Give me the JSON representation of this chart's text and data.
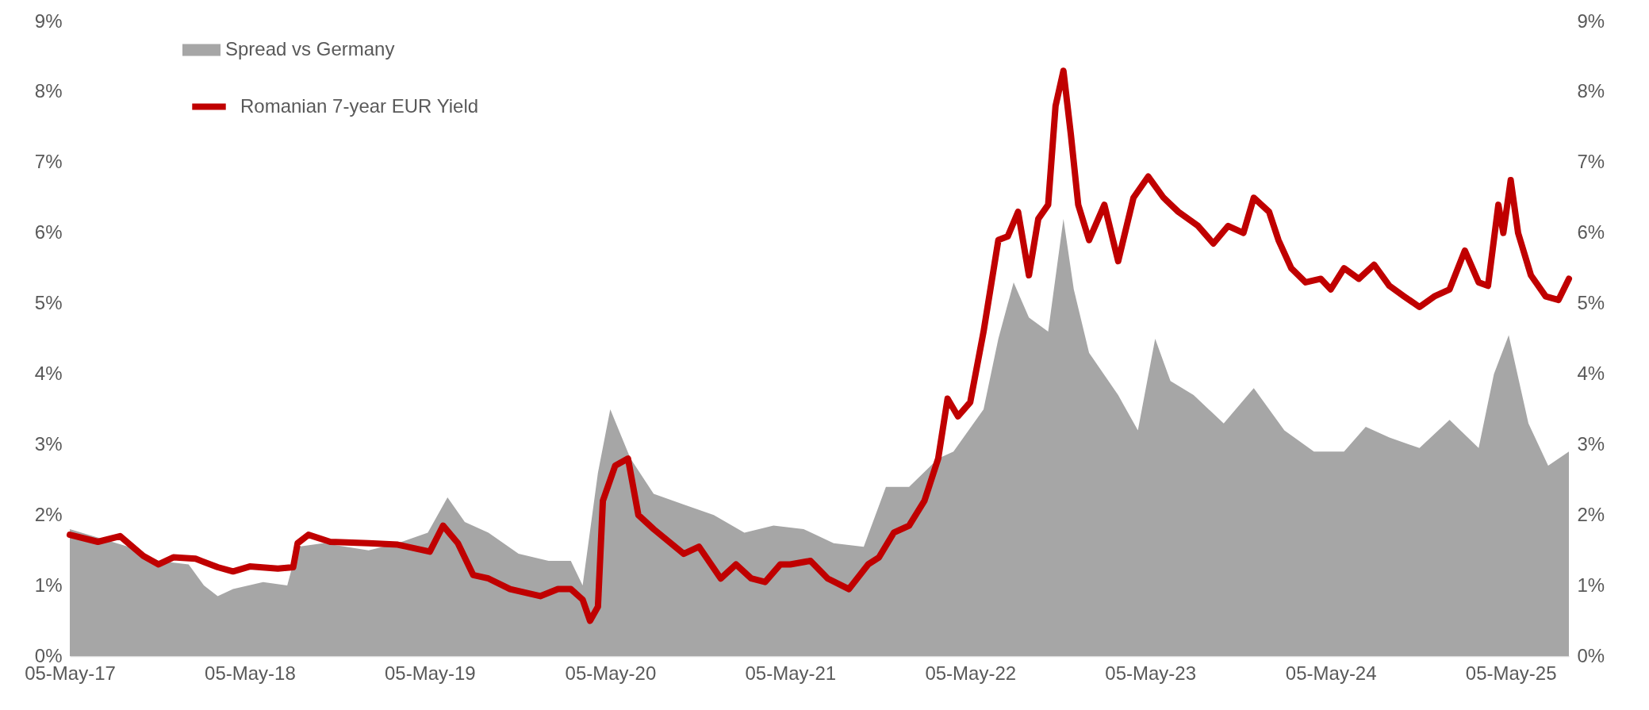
{
  "chart_data": {
    "type": "area",
    "legend": "top left",
    "grid": false,
    "line_style": "solid",
    "xticks": [
      {
        "value": "2017-05-05",
        "label": "05-May-17"
      },
      {
        "value": "2018-05-05",
        "label": "05-May-18"
      },
      {
        "value": "2019-05-05",
        "label": "05-May-19"
      },
      {
        "value": "2020-05-05",
        "label": "05-May-20"
      },
      {
        "value": "2021-05-05",
        "label": "05-May-21"
      },
      {
        "value": "2022-05-05",
        "label": "05-May-22"
      },
      {
        "value": "2023-05-05",
        "label": "05-May-23"
      },
      {
        "value": "2024-05-05",
        "label": "05-May-24"
      },
      {
        "value": "2025-05-05",
        "label": "05-May-25"
      }
    ],
    "xlim": [
      "2017-05-05",
      "2025-08-31"
    ],
    "ylim": [
      0,
      9
    ],
    "yticks": [
      {
        "value": 0,
        "label": "0%"
      },
      {
        "value": 1,
        "label": "1%"
      },
      {
        "value": 2,
        "label": "2%"
      },
      {
        "value": 3,
        "label": "3%"
      },
      {
        "value": 4,
        "label": "4%"
      },
      {
        "value": 5,
        "label": "5%"
      },
      {
        "value": 6,
        "label": "6%"
      },
      {
        "value": 7,
        "label": "7%"
      },
      {
        "value": 8,
        "label": "8%"
      },
      {
        "value": 9,
        "label": "9%"
      }
    ],
    "y2lim": [
      0,
      9
    ],
    "y2ticks": [
      {
        "value": 0,
        "label": "0%"
      },
      {
        "value": 1,
        "label": "1%"
      },
      {
        "value": 2,
        "label": "2%"
      },
      {
        "value": 3,
        "label": "3%"
      },
      {
        "value": 4,
        "label": "4%"
      },
      {
        "value": 5,
        "label": "5%"
      },
      {
        "value": 6,
        "label": "6%"
      },
      {
        "value": 7,
        "label": "7%"
      },
      {
        "value": 8,
        "label": "8%"
      },
      {
        "value": 9,
        "label": "9%"
      }
    ],
    "series": [
      {
        "name": "Spread vs Germany",
        "color": "#a6a6a6",
        "x": [
          "2017-05-05",
          "2017-09-01",
          "2017-11-01",
          "2018-01-01",
          "2018-02-01",
          "2018-03-01",
          "2018-04-01",
          "2018-06-01",
          "2018-07-20",
          "2018-08-10",
          "2018-10-01",
          "2019-01-01",
          "2019-03-01",
          "2019-05-01",
          "2019-06-10",
          "2019-07-15",
          "2019-09-01",
          "2019-11-01",
          "2020-01-01",
          "2020-02-15",
          "2020-03-10",
          "2020-04-10",
          "2020-05-05",
          "2020-06-15",
          "2020-08-01",
          "2020-10-01",
          "2020-12-01",
          "2021-02-01",
          "2021-04-01",
          "2021-06-01",
          "2021-08-01",
          "2021-10-01",
          "2021-11-15",
          "2022-01-01",
          "2022-03-01",
          "2022-04-01",
          "2022-06-01",
          "2022-07-01",
          "2022-08-01",
          "2022-09-01",
          "2022-10-10",
          "2022-11-10",
          "2022-12-01",
          "2023-01-01",
          "2023-03-01",
          "2023-04-10",
          "2023-05-15",
          "2023-06-15",
          "2023-08-01",
          "2023-10-01",
          "2023-12-01",
          "2024-02-01",
          "2024-04-01",
          "2024-06-01",
          "2024-07-15",
          "2024-09-01",
          "2024-11-01",
          "2025-01-01",
          "2025-03-01",
          "2025-04-01",
          "2025-05-01",
          "2025-06-10",
          "2025-07-20",
          "2025-08-31"
        ],
        "values": [
          1.8,
          1.55,
          1.35,
          1.3,
          1.0,
          0.85,
          0.95,
          1.05,
          1.0,
          1.55,
          1.6,
          1.5,
          1.6,
          1.75,
          2.25,
          1.9,
          1.75,
          1.45,
          1.35,
          1.35,
          1.0,
          2.6,
          3.5,
          2.8,
          2.3,
          2.15,
          2.0,
          1.75,
          1.85,
          1.8,
          1.6,
          1.55,
          2.4,
          2.4,
          2.8,
          2.9,
          3.5,
          4.5,
          5.3,
          4.8,
          4.6,
          6.2,
          5.2,
          4.3,
          3.7,
          3.2,
          4.5,
          3.9,
          3.7,
          3.3,
          3.8,
          3.2,
          2.9,
          2.9,
          3.25,
          3.1,
          2.95,
          3.35,
          2.95,
          4.0,
          4.55,
          3.3,
          2.7,
          2.9
        ]
      },
      {
        "name": "Romanian 7-year EUR Yield",
        "type": "line",
        "axis": "y2",
        "color": "#c00000",
        "x": [
          "2017-05-05",
          "2017-07-01",
          "2017-08-15",
          "2017-10-01",
          "2017-11-01",
          "2017-12-01",
          "2018-01-15",
          "2018-03-01",
          "2018-04-01",
          "2018-05-05",
          "2018-07-01",
          "2018-08-01",
          "2018-08-10",
          "2018-09-01",
          "2018-10-15",
          "2019-01-01",
          "2019-03-01",
          "2019-05-05",
          "2019-06-01",
          "2019-07-01",
          "2019-08-01",
          "2019-09-01",
          "2019-10-15",
          "2019-12-15",
          "2020-01-20",
          "2020-02-15",
          "2020-03-10",
          "2020-03-25",
          "2020-04-10",
          "2020-04-20",
          "2020-05-15",
          "2020-06-10",
          "2020-07-01",
          "2020-08-01",
          "2020-10-01",
          "2020-11-01",
          "2020-12-15",
          "2021-01-15",
          "2021-02-15",
          "2021-03-15",
          "2021-04-15",
          "2021-05-05",
          "2021-06-15",
          "2021-07-20",
          "2021-09-01",
          "2021-10-10",
          "2021-11-01",
          "2021-12-01",
          "2022-01-01",
          "2022-02-01",
          "2022-03-01",
          "2022-03-20",
          "2022-04-10",
          "2022-05-05",
          "2022-06-01",
          "2022-07-01",
          "2022-07-20",
          "2022-08-10",
          "2022-09-01",
          "2022-09-20",
          "2022-10-10",
          "2022-10-25",
          "2022-11-10",
          "2022-11-25",
          "2022-12-10",
          "2023-01-01",
          "2023-02-01",
          "2023-03-01",
          "2023-04-01",
          "2023-05-01",
          "2023-06-01",
          "2023-07-01",
          "2023-08-10",
          "2023-09-10",
          "2023-10-10",
          "2023-11-10",
          "2023-12-01",
          "2024-01-01",
          "2024-01-20",
          "2024-02-15",
          "2024-03-15",
          "2024-04-15",
          "2024-05-05",
          "2024-06-01",
          "2024-07-01",
          "2024-08-01",
          "2024-09-01",
          "2024-10-01",
          "2024-11-01",
          "2024-12-01",
          "2025-01-01",
          "2025-02-01",
          "2025-03-01",
          "2025-03-20",
          "2025-04-10",
          "2025-04-20",
          "2025-05-05",
          "2025-05-20",
          "2025-06-15",
          "2025-07-15",
          "2025-08-10",
          "2025-08-31"
        ],
        "values": [
          1.72,
          1.62,
          1.7,
          1.42,
          1.3,
          1.4,
          1.38,
          1.26,
          1.2,
          1.27,
          1.24,
          1.26,
          1.6,
          1.72,
          1.62,
          1.6,
          1.58,
          1.48,
          1.85,
          1.6,
          1.15,
          1.1,
          0.95,
          0.85,
          0.95,
          0.95,
          0.8,
          0.5,
          0.7,
          2.2,
          2.7,
          2.8,
          2.0,
          1.8,
          1.45,
          1.55,
          1.1,
          1.3,
          1.1,
          1.05,
          1.3,
          1.3,
          1.35,
          1.1,
          0.95,
          1.3,
          1.4,
          1.75,
          1.85,
          2.2,
          2.8,
          3.65,
          3.4,
          3.6,
          4.6,
          5.9,
          5.95,
          6.3,
          5.4,
          6.2,
          6.4,
          7.8,
          8.3,
          7.4,
          6.4,
          5.9,
          6.4,
          5.6,
          6.5,
          6.8,
          6.5,
          6.3,
          6.1,
          5.85,
          6.1,
          6.0,
          6.5,
          6.3,
          5.9,
          5.5,
          5.3,
          5.35,
          5.2,
          5.5,
          5.35,
          5.55,
          5.25,
          5.1,
          4.95,
          5.1,
          5.2,
          5.75,
          5.3,
          5.25,
          6.4,
          6.0,
          6.75,
          6.0,
          5.4,
          5.1,
          5.05,
          5.35
        ]
      }
    ]
  }
}
